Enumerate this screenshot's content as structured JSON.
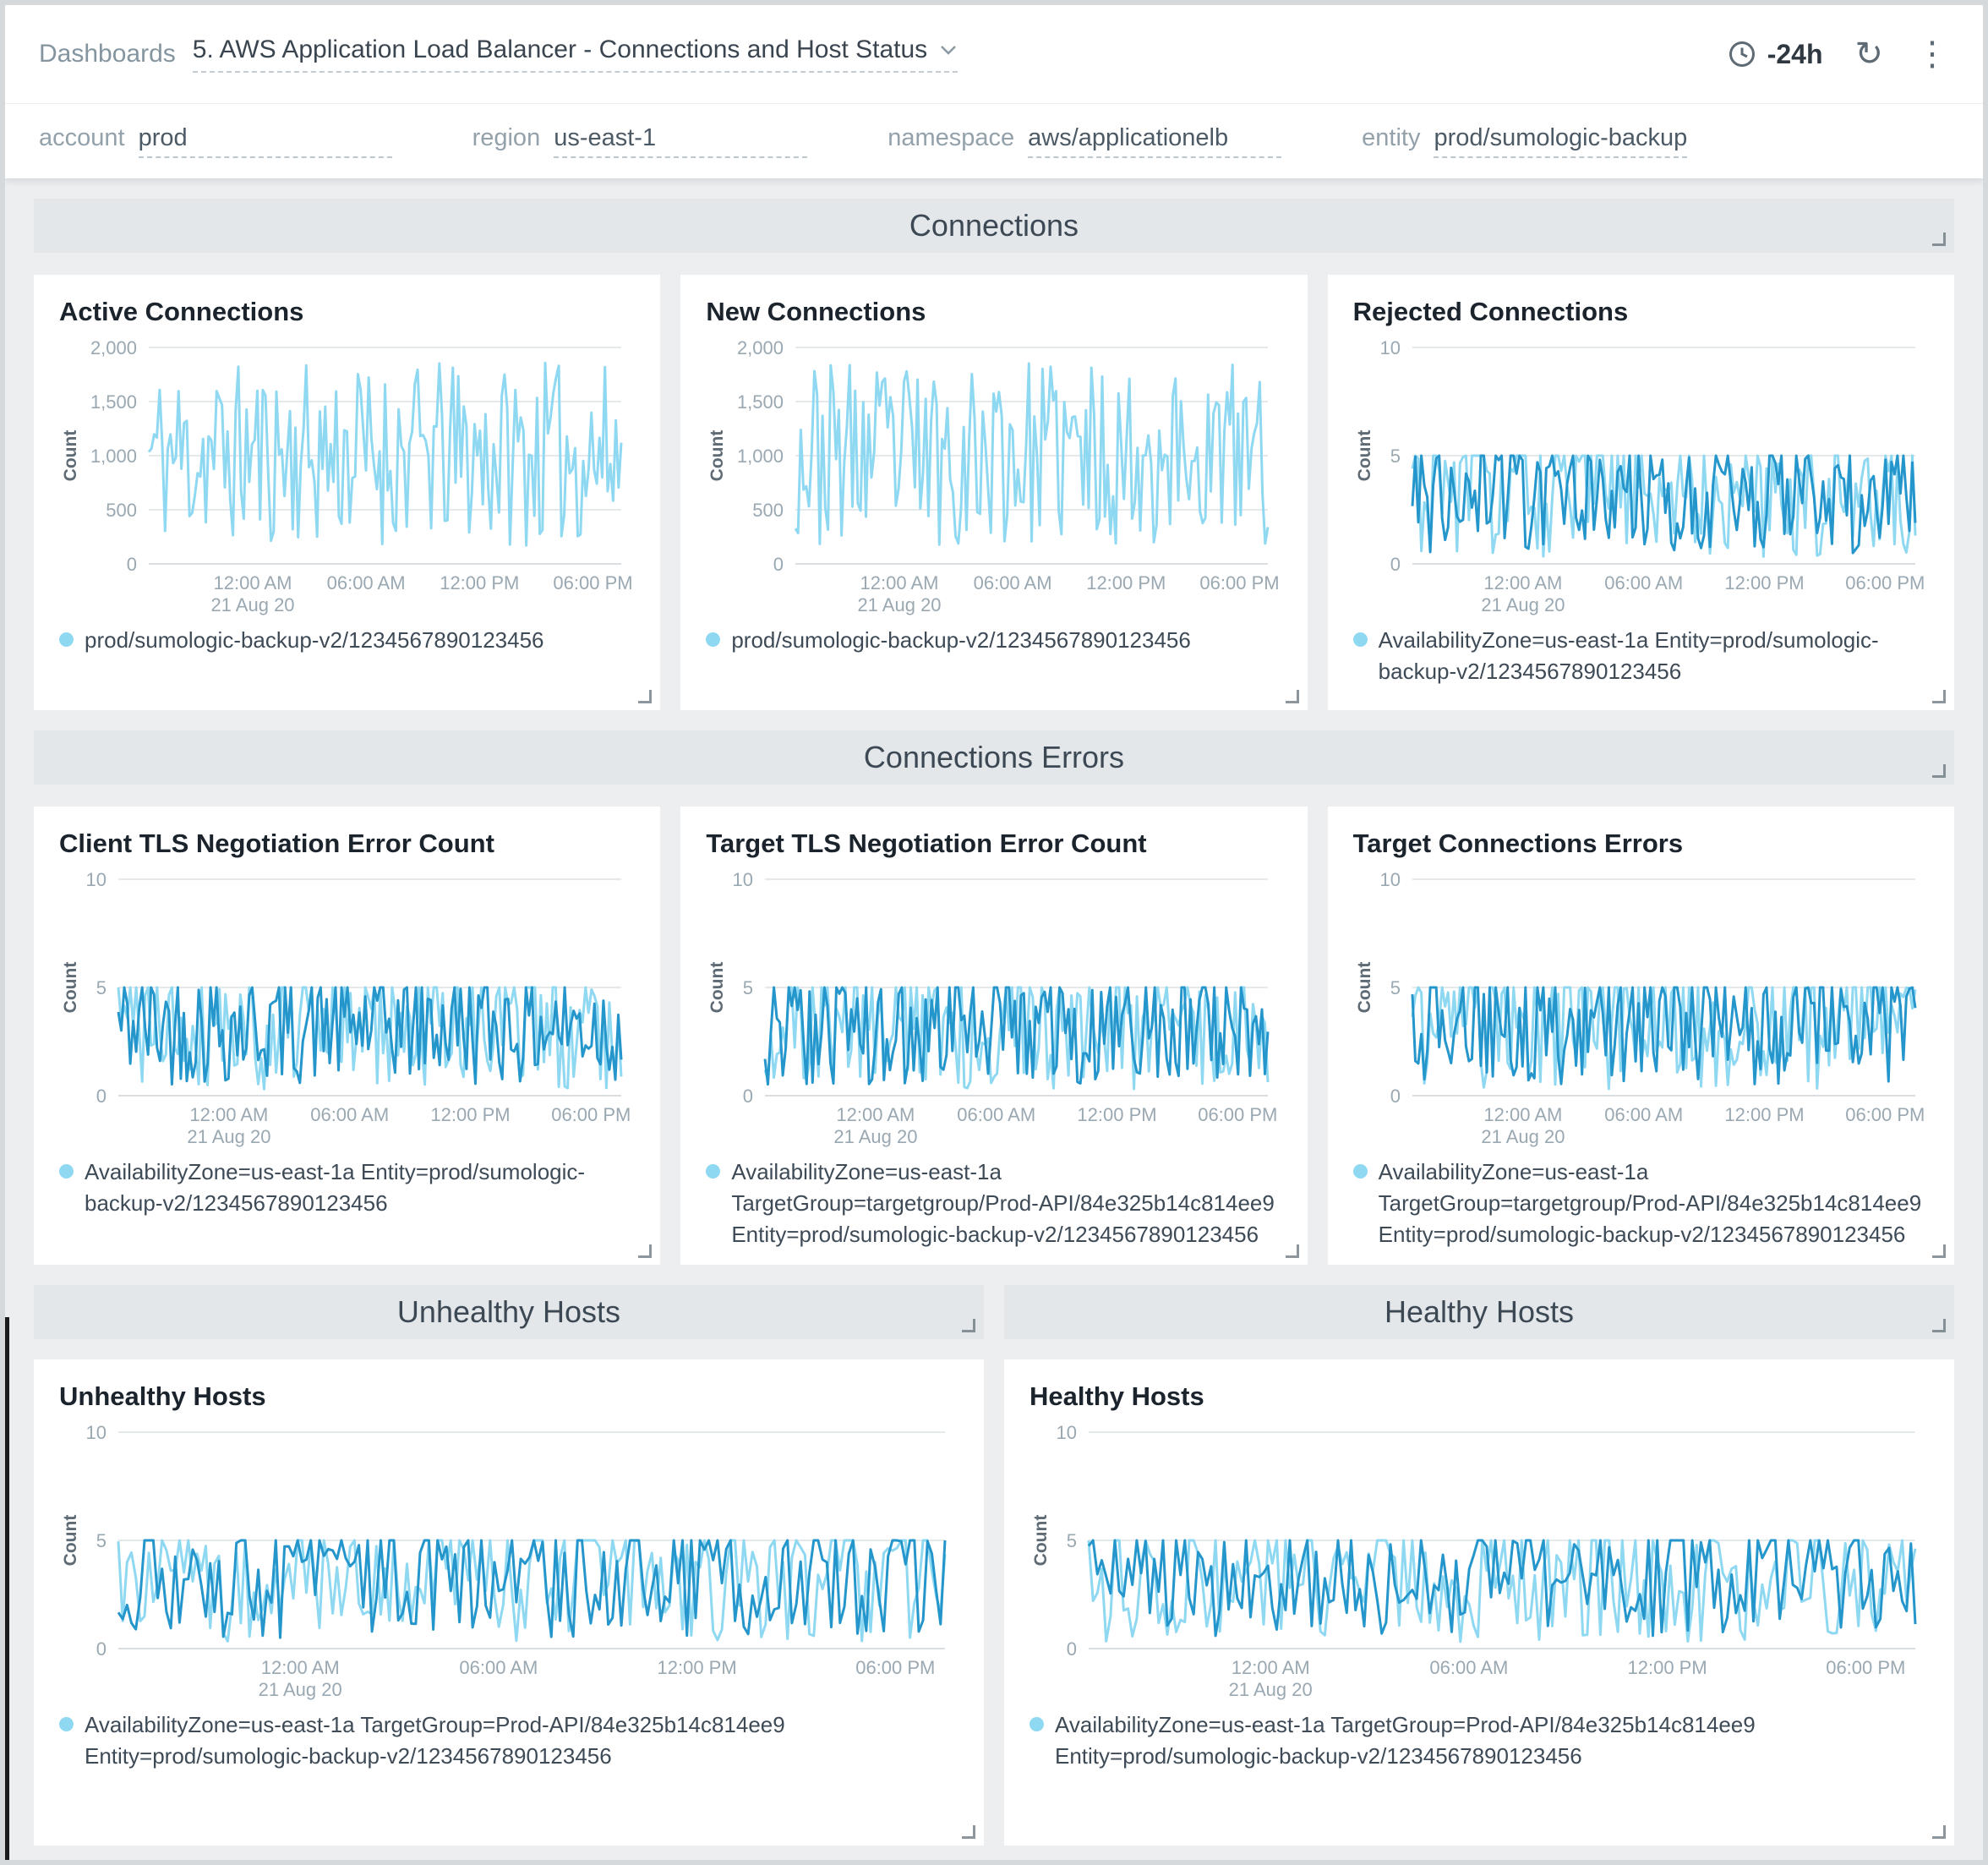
{
  "header": {
    "breadcrumb": "Dashboards",
    "title": "5. AWS Application Load Balancer - Connections and Host Status",
    "time_range": "-24h"
  },
  "icons": {
    "refresh": "↻",
    "kebab": "⋮"
  },
  "filters": [
    {
      "label": "account",
      "value": "prod"
    },
    {
      "label": "region",
      "value": "us-east-1"
    },
    {
      "label": "namespace",
      "value": "aws/applicationelb"
    },
    {
      "label": "entity",
      "value": "prod/sumologic-backup"
    }
  ],
  "sections": {
    "connections": "Connections",
    "connection_errors": "Connections Errors",
    "unhealthy_hosts": "Unhealthy Hosts",
    "healthy_hosts": "Healthy Hosts"
  },
  "colors": {
    "series_light": "#8FD8F2",
    "series_dark": "#2496CB"
  },
  "chart_data": [
    {
      "id": "active-connections",
      "type": "line",
      "title": "Active Connections",
      "ylabel": "Count",
      "ylim": [
        0,
        2000
      ],
      "yticks": [
        0,
        500,
        1000,
        1500,
        2000
      ],
      "ytick_labels": [
        "0",
        "500",
        "1,000",
        "1,500",
        "2,000"
      ],
      "xticks": [
        "12:00 AM",
        "06:00 AM",
        "12:00 PM",
        "06:00 PM"
      ],
      "xdate": "21 Aug 20",
      "series": [
        {
          "color": "#8FD8F2",
          "seed": 11,
          "points": 175,
          "min": 170,
          "max": 1860,
          "cap": 1860
        }
      ],
      "legend": [
        {
          "color": "#8FD8F2",
          "label": "prod/sumologic-backup-v2/1234567890123456"
        }
      ]
    },
    {
      "id": "new-connections",
      "type": "line",
      "title": "New Connections",
      "ylabel": "Count",
      "ylim": [
        0,
        2000
      ],
      "yticks": [
        0,
        500,
        1000,
        1500,
        2000
      ],
      "ytick_labels": [
        "0",
        "500",
        "1,000",
        "1,500",
        "2,000"
      ],
      "xticks": [
        "12:00 AM",
        "06:00 AM",
        "12:00 PM",
        "06:00 PM"
      ],
      "xdate": "21 Aug 20",
      "series": [
        {
          "color": "#8FD8F2",
          "seed": 23,
          "points": 175,
          "min": 170,
          "max": 1860,
          "cap": 1860
        }
      ],
      "legend": [
        {
          "color": "#8FD8F2",
          "label": "prod/sumologic-backup-v2/1234567890123456"
        }
      ]
    },
    {
      "id": "rejected-connections",
      "type": "line",
      "title": "Rejected Connections",
      "ylabel": "Count",
      "ylim": [
        0,
        10
      ],
      "yticks": [
        0,
        5,
        10
      ],
      "ytick_labels": [
        "0",
        "5",
        "10"
      ],
      "xticks": [
        "12:00 AM",
        "06:00 AM",
        "12:00 PM",
        "06:00 PM"
      ],
      "xdate": "21 Aug 20",
      "series": [
        {
          "color": "#8FD8F2",
          "seed": 31,
          "points": 170,
          "min": 0.3,
          "max": 6.4,
          "cap": 5
        },
        {
          "color": "#2496CB",
          "seed": 32,
          "points": 170,
          "min": 0.5,
          "max": 6.1,
          "cap": 5
        }
      ],
      "legend": [
        {
          "color": "#8FD8F2",
          "label": "AvailabilityZone=us-east-1a Entity=prod/sumologic-backup-v2/1234567890123456"
        }
      ]
    },
    {
      "id": "client-tls-negotiation-error-count",
      "type": "line",
      "title": "Client TLS Negotiation Error Count",
      "ylabel": "Count",
      "ylim": [
        0,
        10
      ],
      "yticks": [
        0,
        5,
        10
      ],
      "ytick_labels": [
        "0",
        "5",
        "10"
      ],
      "xticks": [
        "12:00 AM",
        "06:00 AM",
        "12:00 PM",
        "06:00 PM"
      ],
      "xdate": "21 Aug 20",
      "series": [
        {
          "color": "#8FD8F2",
          "seed": 41,
          "points": 170,
          "min": 0.3,
          "max": 6.4,
          "cap": 5
        },
        {
          "color": "#2496CB",
          "seed": 42,
          "points": 170,
          "min": 0.5,
          "max": 6.1,
          "cap": 5
        }
      ],
      "legend": [
        {
          "color": "#8FD8F2",
          "label": "AvailabilityZone=us-east-1a Entity=prod/sumologic-backup-v2/1234567890123456"
        }
      ]
    },
    {
      "id": "target-tls-negotiation-error-count",
      "type": "line",
      "title": "Target TLS Negotiation Error Count",
      "ylabel": "Count",
      "ylim": [
        0,
        10
      ],
      "yticks": [
        0,
        5,
        10
      ],
      "ytick_labels": [
        "0",
        "5",
        "10"
      ],
      "xticks": [
        "12:00 AM",
        "06:00 AM",
        "12:00 PM",
        "06:00 PM"
      ],
      "xdate": "21 Aug 20",
      "series": [
        {
          "color": "#8FD8F2",
          "seed": 51,
          "points": 170,
          "min": 0.3,
          "max": 6.4,
          "cap": 5
        },
        {
          "color": "#2496CB",
          "seed": 52,
          "points": 170,
          "min": 0.5,
          "max": 6.1,
          "cap": 5
        }
      ],
      "legend": [
        {
          "color": "#8FD8F2",
          "label": "AvailabilityZone=us-east-1a TargetGroup=targetgroup/Prod-API/84e325b14c814ee9 Entity=prod/sumologic-backup-v2/1234567890123456"
        }
      ]
    },
    {
      "id": "target-connections-errors",
      "type": "line",
      "title": "Target Connections Errors",
      "ylabel": "Count",
      "ylim": [
        0,
        10
      ],
      "yticks": [
        0,
        5,
        10
      ],
      "ytick_labels": [
        "0",
        "5",
        "10"
      ],
      "xticks": [
        "12:00 AM",
        "06:00 AM",
        "12:00 PM",
        "06:00 PM"
      ],
      "xdate": "21 Aug 20",
      "series": [
        {
          "color": "#8FD8F2",
          "seed": 61,
          "points": 170,
          "min": 0.3,
          "max": 6.4,
          "cap": 5
        },
        {
          "color": "#2496CB",
          "seed": 62,
          "points": 170,
          "min": 0.5,
          "max": 6.1,
          "cap": 5
        }
      ],
      "legend": [
        {
          "color": "#8FD8F2",
          "label": "AvailabilityZone=us-east-1a TargetGroup=targetgroup/Prod-API/84e325b14c814ee9 Entity=prod/sumologic-backup-v2/1234567890123456"
        }
      ]
    },
    {
      "id": "unhealthy-hosts",
      "type": "line",
      "title": "Unhealthy Hosts",
      "ylabel": "Count",
      "ylim": [
        0,
        10
      ],
      "yticks": [
        0,
        5,
        10
      ],
      "ytick_labels": [
        "0",
        "5",
        "10"
      ],
      "xticks": [
        "12:00 AM",
        "06:00 AM",
        "12:00 PM",
        "06:00 PM"
      ],
      "xdate": "21 Aug 20",
      "series": [
        {
          "color": "#8FD8F2",
          "seed": 71,
          "points": 190,
          "min": 0.3,
          "max": 6.4,
          "cap": 5
        },
        {
          "color": "#2496CB",
          "seed": 72,
          "points": 190,
          "min": 0.5,
          "max": 6.1,
          "cap": 5
        }
      ],
      "legend": [
        {
          "color": "#8FD8F2",
          "label": "AvailabilityZone=us-east-1a TargetGroup=Prod-API/84e325b14c814ee9 Entity=prod/sumologic-backup-v2/1234567890123456"
        }
      ]
    },
    {
      "id": "healthy-hosts",
      "type": "line",
      "title": "Healthy Hosts",
      "ylabel": "Count",
      "ylim": [
        0,
        10
      ],
      "yticks": [
        0,
        5,
        10
      ],
      "ytick_labels": [
        "0",
        "5",
        "10"
      ],
      "xticks": [
        "12:00 AM",
        "06:00 AM",
        "12:00 PM",
        "06:00 PM"
      ],
      "xdate": "21 Aug 20",
      "series": [
        {
          "color": "#8FD8F2",
          "seed": 81,
          "points": 190,
          "min": 0.3,
          "max": 6.4,
          "cap": 5
        },
        {
          "color": "#2496CB",
          "seed": 82,
          "points": 190,
          "min": 0.5,
          "max": 6.1,
          "cap": 5
        }
      ],
      "legend": [
        {
          "color": "#8FD8F2",
          "label": "AvailabilityZone=us-east-1a TargetGroup=Prod-API/84e325b14c814ee9 Entity=prod/sumologic-backup-v2/1234567890123456"
        }
      ]
    }
  ]
}
